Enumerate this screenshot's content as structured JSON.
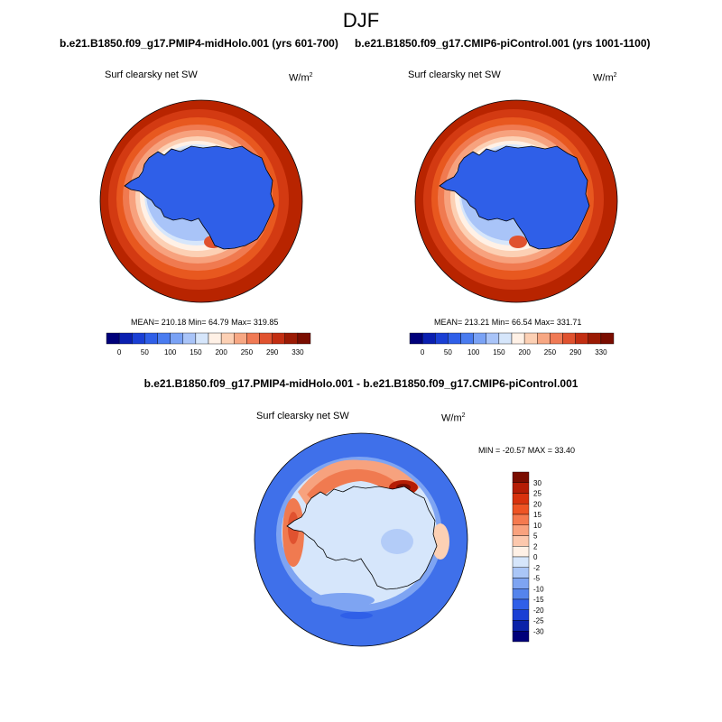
{
  "page": {
    "title": "DJF"
  },
  "panels": [
    {
      "case": "b.e21.B1850.f09_g17.PMIP4-midHolo.001 (yrs 601-700)",
      "variable": "Surf clearsky net SW",
      "units": "W/m",
      "units_exp": "2",
      "stats": "MEAN= 210.18  Min=  64.79  Max= 319.85"
    },
    {
      "case": "b.e21.B1850.f09_g17.CMIP6-piControl.001 (yrs 1001-1100)",
      "variable": "Surf clearsky net SW",
      "units": "W/m",
      "units_exp": "2",
      "stats": "MEAN= 213.21  Min=  66.54  Max= 331.71"
    }
  ],
  "diff_panel": {
    "title": "b.e21.B1850.f09_g17.PMIP4-midHolo.001 - b.e21.B1850.f09_g17.CMIP6-piControl.001",
    "variable": "Surf clearsky net SW",
    "units": "W/m",
    "units_exp": "2",
    "stats": "MIN = -20.57 MAX =  33.40"
  },
  "chart_data": [
    {
      "type": "heatmap",
      "title": "Surf clearsky net SW",
      "subtitle": "b.e21.B1850.f09_g17.PMIP4-midHolo.001 (yrs 601-700)",
      "units": "W/m2",
      "projection": "south polar stereographic",
      "stats": {
        "mean": 210.18,
        "min": 64.79,
        "max": 319.85
      },
      "colorbar": {
        "orientation": "horizontal",
        "tick_labels": [
          "0",
          "50",
          "100",
          "150",
          "200",
          "250",
          "290",
          "330"
        ],
        "levels": [
          0,
          25,
          50,
          75,
          100,
          125,
          150,
          175,
          200,
          225,
          250,
          270,
          290,
          310,
          330
        ],
        "colors": [
          "#00007a",
          "#0a1fb0",
          "#1a3fd4",
          "#2f5fe8",
          "#4a7cf0",
          "#7aa2f5",
          "#a9c4f8",
          "#d6e6fb",
          "#fff1e6",
          "#fcd0b4",
          "#f7a783",
          "#f07a55",
          "#e0522f",
          "#c22e12",
          "#9b1a04",
          "#7a0d00"
        ]
      }
    },
    {
      "type": "heatmap",
      "title": "Surf clearsky net SW",
      "subtitle": "b.e21.B1850.f09_g17.CMIP6-piControl.001 (yrs 1001-1100)",
      "units": "W/m2",
      "projection": "south polar stereographic",
      "stats": {
        "mean": 213.21,
        "min": 66.54,
        "max": 331.71
      },
      "colorbar": {
        "orientation": "horizontal",
        "tick_labels": [
          "0",
          "50",
          "100",
          "150",
          "200",
          "250",
          "290",
          "330"
        ],
        "levels": [
          0,
          25,
          50,
          75,
          100,
          125,
          150,
          175,
          200,
          225,
          250,
          270,
          290,
          310,
          330
        ],
        "colors": [
          "#00007a",
          "#0a1fb0",
          "#1a3fd4",
          "#2f5fe8",
          "#4a7cf0",
          "#7aa2f5",
          "#a9c4f8",
          "#d6e6fb",
          "#fff1e6",
          "#fcd0b4",
          "#f7a783",
          "#f07a55",
          "#e0522f",
          "#c22e12",
          "#9b1a04",
          "#7a0d00"
        ]
      }
    },
    {
      "type": "heatmap",
      "title": "Surf clearsky net SW",
      "subtitle": "b.e21.B1850.f09_g17.PMIP4-midHolo.001 - b.e21.B1850.f09_g17.CMIP6-piControl.001",
      "units": "W/m2",
      "projection": "south polar stereographic",
      "stats": {
        "min": -20.57,
        "max": 33.4
      },
      "colorbar": {
        "orientation": "vertical",
        "tick_labels": [
          "30",
          "25",
          "20",
          "15",
          "10",
          "5",
          "2",
          "0",
          "-2",
          "-5",
          "-10",
          "-15",
          "-20",
          "-25",
          "-30"
        ],
        "colors": [
          "#7a0d00",
          "#b51d05",
          "#d8320d",
          "#ee5424",
          "#f57a4f",
          "#f9a27e",
          "#fcc8ad",
          "#fff1e6",
          "#d6e6fb",
          "#aac6f7",
          "#7ea4f2",
          "#5584ec",
          "#2f5fe8",
          "#1a3fd4",
          "#0a22a8",
          "#00007a"
        ]
      }
    }
  ]
}
